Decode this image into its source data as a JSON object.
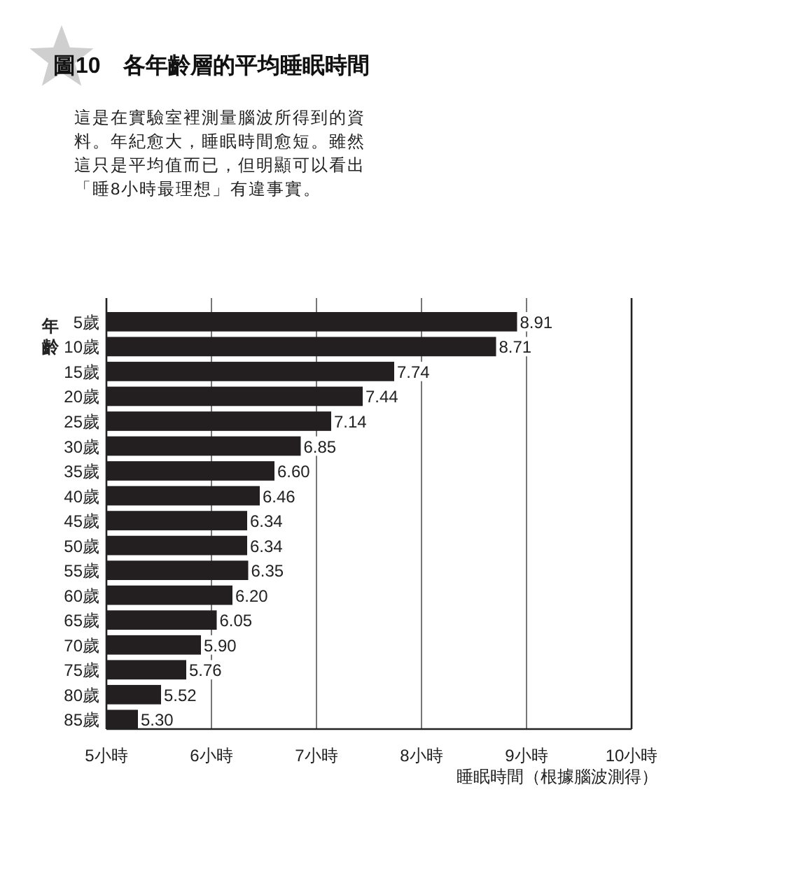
{
  "chart_data": {
    "type": "bar",
    "orientation": "horizontal",
    "title": "圖10　各年齡層的平均睡眠時間",
    "subtitle": "這是在實驗室裡測量腦波所得到的資料。年紀愈大，睡眠時間愈短。雖然這只是平均值而已，但明顯可以看出「睡8小時最理想」有違事實。",
    "ylabel": "年齡",
    "xlabel": "睡眠時間（根據腦波測得）",
    "categories": [
      "5歲",
      "10歲",
      "15歲",
      "20歲",
      "25歲",
      "30歲",
      "35歲",
      "40歲",
      "45歲",
      "50歲",
      "55歲",
      "60歲",
      "65歲",
      "70歲",
      "75歲",
      "80歲",
      "85歲"
    ],
    "values": [
      8.91,
      8.71,
      7.74,
      7.44,
      7.14,
      6.85,
      6.6,
      6.46,
      6.34,
      6.34,
      6.35,
      6.2,
      6.05,
      5.9,
      5.76,
      5.52,
      5.3
    ],
    "value_labels": [
      "8.91",
      "8.71",
      "7.74",
      "7.44",
      "7.14",
      "6.85",
      "6.60",
      "6.46",
      "6.34",
      "6.34",
      "6.35",
      "6.20",
      "6.05",
      "5.90",
      "5.76",
      "5.52",
      "5.30"
    ],
    "color": "#231f20",
    "xlim": [
      5,
      10
    ],
    "xticks": [
      {
        "value": 5,
        "label": "5小時"
      },
      {
        "value": 6,
        "label": "6小時"
      },
      {
        "value": 7,
        "label": "7小時"
      },
      {
        "value": 8,
        "label": "8小時"
      },
      {
        "value": 9,
        "label": "9小時"
      },
      {
        "value": 10,
        "label": "10小時"
      }
    ],
    "grid": "x"
  }
}
